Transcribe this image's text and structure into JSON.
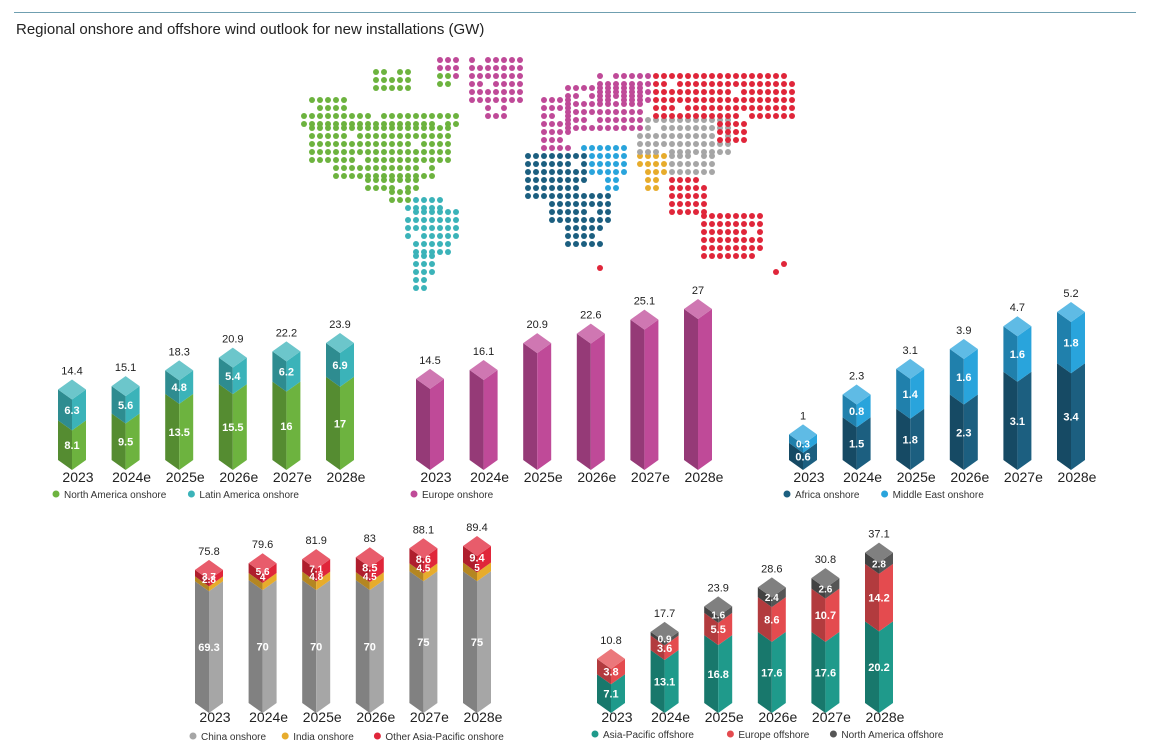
{
  "title": "Regional onshore and offshore wind outlook for new installations (GW)",
  "colors": {
    "north_america": "#6db33f",
    "latin_america": "#3bb3b9",
    "europe": "#bf4a98",
    "africa": "#1c5f80",
    "middle_east": "#29a4dc",
    "china": "#a6a6a6",
    "india": "#e7ac2c",
    "other_apac": "#e0263a",
    "apac_offshore": "#1f9a8b",
    "europe_offshore": "#e44b4f",
    "north_america_offshore": "#555555"
  },
  "chart_data": [
    {
      "type": "bar",
      "stacked": true,
      "categories": [
        "2023",
        "2024e",
        "2025e",
        "2026e",
        "2027e",
        "2028e"
      ],
      "series": [
        {
          "name": "North America onshore",
          "values": [
            8.1,
            9.5,
            13.5,
            15.5,
            16,
            17
          ]
        },
        {
          "name": "Latin America onshore",
          "values": [
            6.3,
            5.6,
            4.8,
            5.4,
            6.2,
            6.9
          ]
        }
      ],
      "totals": [
        14.4,
        15.1,
        18.3,
        20.9,
        22.2,
        23.9
      ],
      "legend_position": "bottom-left"
    },
    {
      "type": "bar",
      "stacked": true,
      "categories": [
        "2023",
        "2024e",
        "2025e",
        "2026e",
        "2027e",
        "2028e"
      ],
      "series": [
        {
          "name": "Europe onshore",
          "values": [
            14.5,
            16.1,
            20.9,
            22.6,
            25.1,
            27
          ]
        }
      ],
      "totals": [
        14.5,
        16.1,
        20.9,
        22.6,
        25.1,
        27
      ],
      "legend_position": "bottom-left"
    },
    {
      "type": "bar",
      "stacked": true,
      "categories": [
        "2023",
        "2024e",
        "2025e",
        "2026e",
        "2027e",
        "2028e"
      ],
      "series": [
        {
          "name": "Africa onshore",
          "values": [
            0.6,
            1.5,
            1.8,
            2.3,
            3.1,
            3.4
          ]
        },
        {
          "name": "Middle East onshore",
          "values": [
            0.3,
            0.8,
            1.4,
            1.6,
            1.6,
            1.8
          ]
        }
      ],
      "totals": [
        1,
        2.3,
        3.1,
        3.9,
        4.7,
        5.2
      ],
      "legend_position": "bottom-left"
    },
    {
      "type": "bar",
      "stacked": true,
      "categories": [
        "2023",
        "2024e",
        "2025e",
        "2026e",
        "2027e",
        "2028e"
      ],
      "series": [
        {
          "name": "China onshore",
          "values": [
            69.3,
            70,
            70,
            70,
            75,
            75
          ]
        },
        {
          "name": "India onshore",
          "values": [
            2.8,
            4,
            4.8,
            4.5,
            4.5,
            5
          ]
        },
        {
          "name": "Other Asia-Pacific onshore",
          "values": [
            3.7,
            5.6,
            7.1,
            8.5,
            8.6,
            9.4
          ]
        }
      ],
      "totals": [
        75.8,
        79.6,
        81.9,
        83,
        88.1,
        89.4
      ],
      "legend_position": "bottom-left"
    },
    {
      "type": "bar",
      "stacked": true,
      "categories": [
        "2023",
        "2024e",
        "2025e",
        "2026e",
        "2027e",
        "2028e"
      ],
      "series": [
        {
          "name": "Asia-Pacific offshore",
          "values": [
            7.1,
            13.1,
            16.8,
            17.6,
            17.6,
            20.2
          ]
        },
        {
          "name": "Europe offshore",
          "values": [
            3.8,
            3.6,
            5.5,
            8.6,
            10.7,
            14.2
          ]
        },
        {
          "name": "North America offshore",
          "values": [
            null,
            0.9,
            1.6,
            2.4,
            2.6,
            2.8
          ]
        }
      ],
      "totals": [
        10.8,
        17.7,
        23.9,
        28.6,
        30.8,
        37.1
      ],
      "legend_position": "bottom-left"
    }
  ]
}
